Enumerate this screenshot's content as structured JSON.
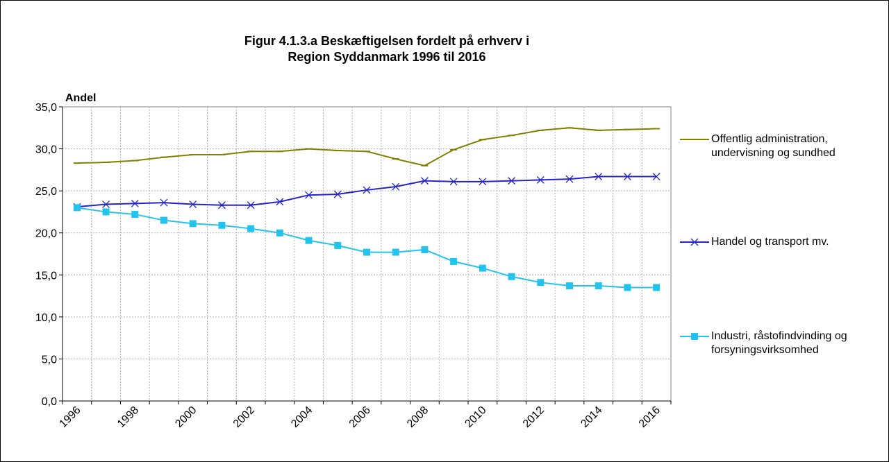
{
  "chart_data": {
    "type": "line",
    "title": [
      "Figur 4.1.3.a Beskæftigelsen fordelt på erhverv i",
      "Region Syddanmark 1996 til 2016"
    ],
    "y_label": "Andel",
    "categories": [
      "1996",
      null,
      "1998",
      null,
      "2000",
      null,
      "2002",
      null,
      "2004",
      null,
      "2006",
      null,
      "2008",
      null,
      "2010",
      null,
      "2012",
      null,
      "2014",
      null,
      "2016"
    ],
    "series": [
      {
        "name": "Offentlig administration, undervisning og sundhed",
        "color": "#808000",
        "marker": "dash",
        "values": [
          28.3,
          28.4,
          28.6,
          29.0,
          29.3,
          29.3,
          29.7,
          29.7,
          30.0,
          29.8,
          29.7,
          28.8,
          28.0,
          29.9,
          31.1,
          31.6,
          32.2,
          32.5,
          32.2,
          32.3,
          32.4
        ]
      },
      {
        "name": "Handel og transport mv.",
        "color": "#2424cc",
        "marker": "x",
        "values": [
          23.1,
          23.4,
          23.5,
          23.6,
          23.4,
          23.3,
          23.3,
          23.7,
          24.5,
          24.6,
          25.1,
          25.5,
          26.2,
          26.1,
          26.1,
          26.2,
          26.3,
          26.4,
          26.7,
          26.7,
          26.7
        ]
      },
      {
        "name": "Industri, råstofindvinding og forsyningsvirksomhed",
        "color": "#22c4ee",
        "marker": "square",
        "values": [
          23.0,
          22.5,
          22.2,
          21.5,
          21.1,
          20.9,
          20.5,
          20.0,
          19.1,
          18.5,
          17.7,
          17.7,
          18.0,
          16.6,
          15.8,
          14.8,
          14.1,
          13.7,
          13.7,
          13.5,
          13.5
        ]
      }
    ],
    "ylim": [
      0,
      35
    ],
    "yticks": [
      {
        "value": 0,
        "label": "0,0"
      },
      {
        "value": 5,
        "label": "5,0"
      },
      {
        "value": 10,
        "label": "10,0"
      },
      {
        "value": 15,
        "label": "15,0"
      },
      {
        "value": 20,
        "label": "20,0"
      },
      {
        "value": 25,
        "label": "25,0"
      },
      {
        "value": 30,
        "label": "30,0"
      },
      {
        "value": 35,
        "label": "35,0"
      }
    ],
    "grid": true
  }
}
